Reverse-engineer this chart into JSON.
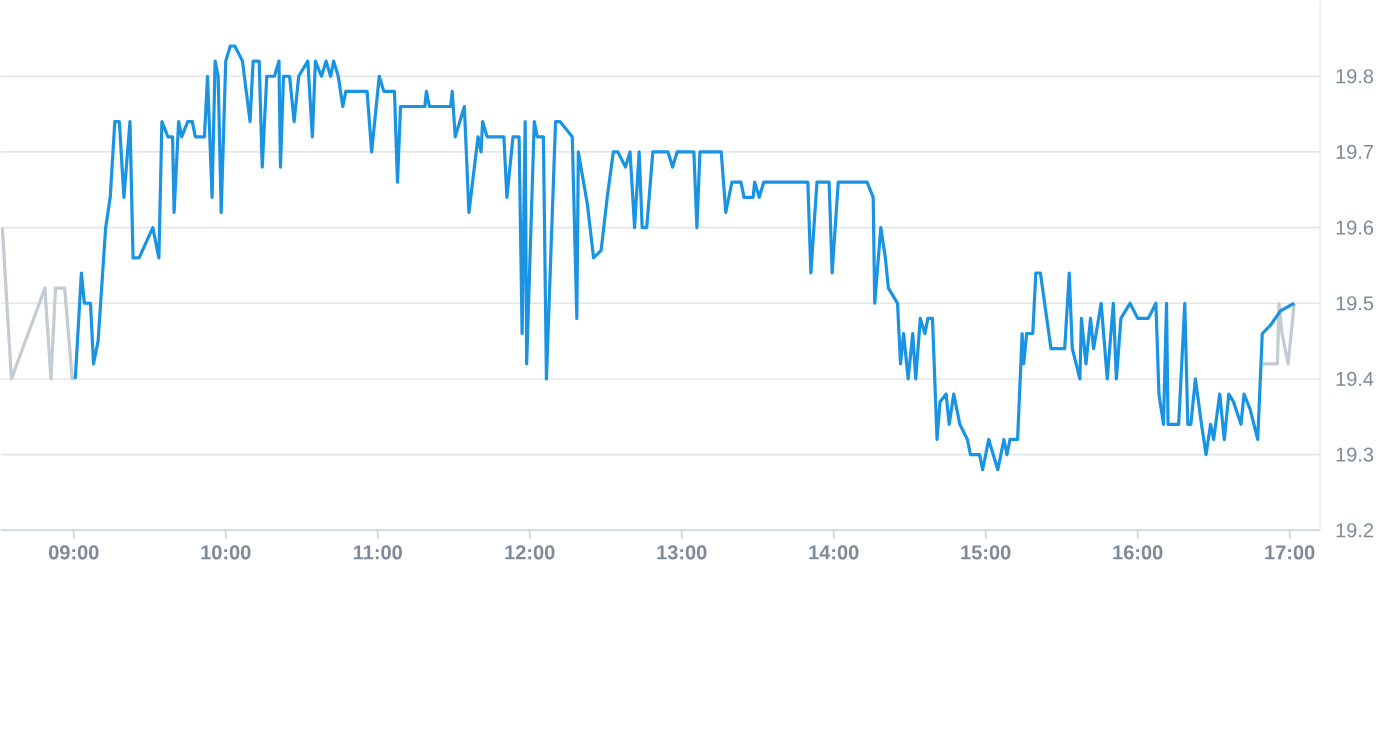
{
  "chart_data": {
    "type": "line",
    "xlim": [
      8.52,
      17.2
    ],
    "ylim": [
      19.2,
      19.9
    ],
    "xticks": [
      {
        "value": 9,
        "label": "09:00"
      },
      {
        "value": 10,
        "label": "10:00"
      },
      {
        "value": 11,
        "label": "11:00"
      },
      {
        "value": 12,
        "label": "12:00"
      },
      {
        "value": 13,
        "label": "13:00"
      },
      {
        "value": 14,
        "label": "14:00"
      },
      {
        "value": 15,
        "label": "15:00"
      },
      {
        "value": 16,
        "label": "16:00"
      },
      {
        "value": 17,
        "label": "17:00"
      }
    ],
    "yticks": [
      19.2,
      19.3,
      19.4,
      19.5,
      19.6,
      19.7,
      19.8
    ],
    "grid": "y",
    "legend": false,
    "marker": "none",
    "line_style": "solid",
    "series": [
      {
        "color": "#c3cbd3",
        "x": [
          8.53,
          8.59,
          8.81,
          8.85,
          8.88,
          8.94,
          8.99,
          9.01
        ],
        "values": [
          19.6,
          19.4,
          19.52,
          19.4,
          19.52,
          19.52,
          19.4,
          19.4
        ]
      },
      {
        "color": "#c3cbd3",
        "x": [
          16.82,
          16.92,
          16.93,
          16.95,
          16.99,
          17.03
        ],
        "values": [
          19.42,
          19.42,
          19.5,
          19.46,
          19.42,
          19.5
        ]
      },
      {
        "color": "#1a94e2",
        "x": [
          9.01,
          9.05,
          9.07,
          9.09,
          9.11,
          9.13,
          9.16,
          9.21,
          9.24,
          9.27,
          9.3,
          9.33,
          9.37,
          9.39,
          9.43,
          9.52,
          9.56,
          9.58,
          9.62,
          9.65,
          9.66,
          9.69,
          9.71,
          9.75,
          9.78,
          9.8,
          9.86,
          9.88,
          9.91,
          9.93,
          9.95,
          9.97,
          10.0,
          10.03,
          10.06,
          10.11,
          10.16,
          10.18,
          10.22,
          10.24,
          10.27,
          10.32,
          10.35,
          10.36,
          10.38,
          10.42,
          10.45,
          10.48,
          10.54,
          10.57,
          10.59,
          10.63,
          10.66,
          10.69,
          10.71,
          10.74,
          10.77,
          10.79,
          10.93,
          10.96,
          11.01,
          11.04,
          11.11,
          11.13,
          11.15,
          11.31,
          11.32,
          11.34,
          11.48,
          11.49,
          11.51,
          11.57,
          11.6,
          11.66,
          11.68,
          11.69,
          11.72,
          11.83,
          11.85,
          11.89,
          11.93,
          11.95,
          11.97,
          11.98,
          12.03,
          12.05,
          12.09,
          12.11,
          12.17,
          12.2,
          12.24,
          12.28,
          12.31,
          12.32,
          12.38,
          12.42,
          12.47,
          12.51,
          12.55,
          12.58,
          12.63,
          12.66,
          12.69,
          12.72,
          12.74,
          12.77,
          12.81,
          12.91,
          12.94,
          12.97,
          13.08,
          13.1,
          13.12,
          13.26,
          13.29,
          13.33,
          13.39,
          13.41,
          13.47,
          13.48,
          13.51,
          13.54,
          13.83,
          13.85,
          13.89,
          13.97,
          13.99,
          14.03,
          14.22,
          14.26,
          14.27,
          14.31,
          14.34,
          14.36,
          14.42,
          14.44,
          14.46,
          14.49,
          14.52,
          14.54,
          14.57,
          14.6,
          14.62,
          14.65,
          14.68,
          14.7,
          14.74,
          14.76,
          14.79,
          14.83,
          14.88,
          14.9,
          14.96,
          14.98,
          15.02,
          15.08,
          15.12,
          15.14,
          15.16,
          15.21,
          15.24,
          15.25,
          15.27,
          15.31,
          15.33,
          15.36,
          15.43,
          15.52,
          15.55,
          15.57,
          15.62,
          15.63,
          15.66,
          15.69,
          15.71,
          15.76,
          15.8,
          15.84,
          15.86,
          15.89,
          15.95,
          16.0,
          16.07,
          16.12,
          16.14,
          16.17,
          16.19,
          16.2,
          16.27,
          16.31,
          16.33,
          16.35,
          16.38,
          16.42,
          16.45,
          16.48,
          16.5,
          16.54,
          16.57,
          16.6,
          16.63,
          16.68,
          16.7,
          16.74,
          16.79,
          16.82,
          16.87,
          16.94,
          17.03
        ],
        "values": [
          19.4,
          19.54,
          19.5,
          19.5,
          19.5,
          19.42,
          19.45,
          19.6,
          19.64,
          19.74,
          19.74,
          19.64,
          19.74,
          19.56,
          19.56,
          19.6,
          19.56,
          19.74,
          19.72,
          19.72,
          19.62,
          19.74,
          19.72,
          19.74,
          19.74,
          19.72,
          19.72,
          19.8,
          19.64,
          19.82,
          19.8,
          19.62,
          19.82,
          19.84,
          19.84,
          19.82,
          19.74,
          19.82,
          19.82,
          19.68,
          19.8,
          19.8,
          19.82,
          19.68,
          19.8,
          19.8,
          19.74,
          19.8,
          19.82,
          19.72,
          19.82,
          19.8,
          19.82,
          19.8,
          19.82,
          19.8,
          19.76,
          19.78,
          19.78,
          19.7,
          19.8,
          19.78,
          19.78,
          19.66,
          19.76,
          19.76,
          19.78,
          19.76,
          19.76,
          19.78,
          19.72,
          19.76,
          19.62,
          19.72,
          19.7,
          19.74,
          19.72,
          19.72,
          19.64,
          19.72,
          19.72,
          19.46,
          19.74,
          19.42,
          19.74,
          19.72,
          19.72,
          19.4,
          19.74,
          19.74,
          19.73,
          19.72,
          19.48,
          19.7,
          19.63,
          19.56,
          19.57,
          19.64,
          19.7,
          19.7,
          19.68,
          19.7,
          19.6,
          19.7,
          19.6,
          19.6,
          19.7,
          19.7,
          19.68,
          19.7,
          19.7,
          19.6,
          19.7,
          19.7,
          19.62,
          19.66,
          19.66,
          19.64,
          19.64,
          19.66,
          19.64,
          19.66,
          19.66,
          19.54,
          19.66,
          19.66,
          19.54,
          19.66,
          19.66,
          19.64,
          19.5,
          19.6,
          19.56,
          19.52,
          19.5,
          19.42,
          19.46,
          19.4,
          19.46,
          19.4,
          19.48,
          19.46,
          19.48,
          19.48,
          19.32,
          19.37,
          19.38,
          19.34,
          19.38,
          19.34,
          19.32,
          19.3,
          19.3,
          19.28,
          19.32,
          19.28,
          19.32,
          19.3,
          19.32,
          19.32,
          19.46,
          19.42,
          19.46,
          19.46,
          19.54,
          19.54,
          19.44,
          19.44,
          19.54,
          19.44,
          19.4,
          19.48,
          19.42,
          19.48,
          19.44,
          19.5,
          19.4,
          19.5,
          19.4,
          19.48,
          19.5,
          19.48,
          19.48,
          19.5,
          19.38,
          19.34,
          19.5,
          19.34,
          19.34,
          19.5,
          19.34,
          19.34,
          19.4,
          19.34,
          19.3,
          19.34,
          19.32,
          19.38,
          19.32,
          19.38,
          19.37,
          19.34,
          19.38,
          19.36,
          19.32,
          19.46,
          19.47,
          19.49,
          19.5
        ]
      }
    ]
  }
}
